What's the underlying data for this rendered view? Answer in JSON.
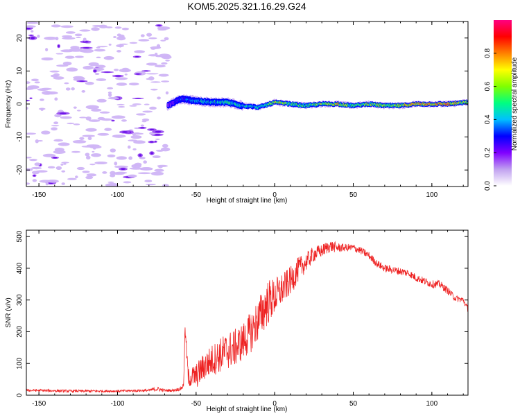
{
  "title": "KOM5.2025.321.16.29.G24",
  "chart_data": [
    {
      "type": "heatmap",
      "name": "spectrogram",
      "xlabel": "Height of straight line (km)",
      "ylabel": "Frequency (Hz)",
      "xlim": [
        -158,
        123
      ],
      "ylim": [
        -25,
        25
      ],
      "xticks": [
        -150,
        -100,
        -50,
        0,
        50,
        100
      ],
      "xtick_labels": [
        "-150",
        "-100",
        "-50",
        "0",
        "50",
        "100"
      ],
      "yticks": [
        -20,
        -10,
        0,
        10,
        20
      ],
      "ytick_labels": [
        "-20",
        "-10",
        "0",
        "10",
        "20"
      ],
      "colorbar": {
        "label": "Normalized spectral amplitude",
        "range": [
          0,
          1
        ],
        "ticks": [
          0.0,
          0.2,
          0.4,
          0.6,
          0.8
        ],
        "tick_labels": [
          "0.0",
          "0.2",
          "0.4",
          "0.6",
          "0.8"
        ],
        "colors": [
          "#ffffff",
          "#c0a0f0",
          "#8000ff",
          "#0000ff",
          "#00c0ff",
          "#00ff80",
          "#80ff00",
          "#ffff00",
          "#ff8000",
          "#ff0000",
          "#ff0080"
        ]
      },
      "noise_region_x": [
        -158,
        -68
      ],
      "signal_region_x": [
        -68,
        123
      ],
      "ridge": {
        "x": [
          -68,
          -60,
          -50,
          -40,
          -30,
          -20,
          -10,
          0,
          10,
          20,
          30,
          40,
          50,
          60,
          70,
          80,
          90,
          100,
          110,
          123
        ],
        "frequency": [
          -0.5,
          1.5,
          1.0,
          0.5,
          0.5,
          -0.5,
          -1.0,
          0.5,
          0.0,
          -0.5,
          0.0,
          0.0,
          -0.5,
          0.0,
          -0.5,
          -0.5,
          0.0,
          0.0,
          0.0,
          0.5
        ],
        "amplitude": [
          0.2,
          0.35,
          0.45,
          0.5,
          0.55,
          0.5,
          0.45,
          0.75,
          0.6,
          0.55,
          0.65,
          0.75,
          0.55,
          0.65,
          0.65,
          0.7,
          0.75,
          0.8,
          0.85,
          0.6
        ]
      }
    },
    {
      "type": "line",
      "name": "snr",
      "xlabel": "Height of straight line (km)",
      "ylabel": "SNR (v/v)",
      "xlim": [
        -158,
        123
      ],
      "ylim": [
        0,
        520
      ],
      "xticks": [
        -150,
        -100,
        -50,
        0,
        50,
        100
      ],
      "xtick_labels": [
        "-150",
        "-100",
        "-50",
        "0",
        "50",
        "100"
      ],
      "yticks": [
        0,
        100,
        200,
        300,
        400,
        500
      ],
      "ytick_labels": [
        "0",
        "100",
        "200",
        "300",
        "400",
        "500"
      ],
      "color": "#ee2222",
      "series": [
        {
          "name": "SNR",
          "x": [
            -158,
            -150,
            -140,
            -130,
            -120,
            -110,
            -100,
            -90,
            -80,
            -75,
            -70,
            -65,
            -60,
            -58,
            -57,
            -55,
            -50,
            -45,
            -40,
            -35,
            -30,
            -25,
            -20,
            -15,
            -10,
            -5,
            0,
            5,
            10,
            15,
            20,
            25,
            30,
            35,
            40,
            45,
            50,
            55,
            60,
            65,
            70,
            75,
            80,
            85,
            90,
            95,
            100,
            105,
            110,
            115,
            120,
            123
          ],
          "y": [
            15,
            15,
            14,
            13,
            13,
            13,
            13,
            14,
            15,
            20,
            15,
            15,
            20,
            30,
            210,
            55,
            60,
            90,
            110,
            125,
            140,
            150,
            170,
            200,
            240,
            290,
            310,
            335,
            360,
            395,
            420,
            445,
            455,
            470,
            465,
            465,
            465,
            455,
            440,
            415,
            400,
            395,
            390,
            385,
            370,
            360,
            350,
            350,
            330,
            305,
            300,
            270
          ],
          "noise_amplitude": [
            4,
            4,
            4,
            4,
            4,
            4,
            4,
            4,
            4,
            8,
            4,
            4,
            6,
            10,
            20,
            30,
            40,
            45,
            50,
            55,
            60,
            60,
            60,
            65,
            70,
            75,
            60,
            50,
            45,
            40,
            30,
            25,
            20,
            20,
            15,
            12,
            12,
            12,
            12,
            12,
            12,
            12,
            12,
            12,
            12,
            12,
            12,
            12,
            12,
            10,
            10,
            10
          ]
        }
      ]
    }
  ]
}
